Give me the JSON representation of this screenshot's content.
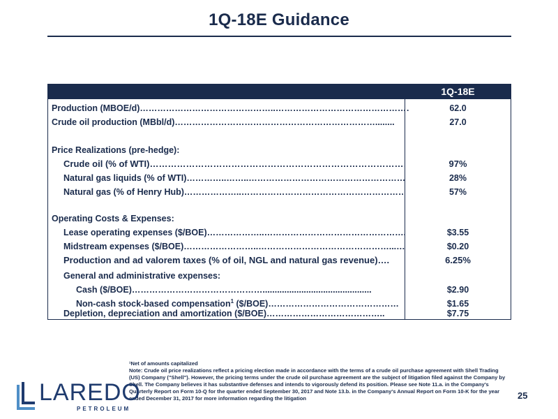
{
  "slide": {
    "title": "1Q-18E Guidance",
    "page_number": "25"
  },
  "table": {
    "column_header": "1Q-18E",
    "rows": {
      "production": {
        "label": "Production (MBOE/d)………………………………………..…………………………………………...",
        "value": "62.0"
      },
      "crude_production": {
        "label": "Crude oil production (MBbl/d)……………………………………………………………........",
        "value": "27.0"
      },
      "price_heading": {
        "label": "Price Realizations (pre-hedge):"
      },
      "crude_oil": {
        "label": "Crude oil (% of WTI)……………………………………………………………………………………",
        "value": "97%"
      },
      "ngl": {
        "label": "Natural gas liquids (% of WTI)…………..……..………………………………………………..",
        "value": "28%"
      },
      "natural_gas": {
        "label": "Natural gas (% of Henry Hub)………………..……………………………………………………",
        "value": "57%"
      },
      "costs_heading": {
        "label": "Operating Costs & Expenses:"
      },
      "loe": {
        "label": "Lease operating expenses ($/BOE)………………..…………………………………………..",
        "value": "$3.55"
      },
      "midstream": {
        "label": "Midstream expenses ($/BOE)……………………..………………………………………...……..",
        "value": "$0.20"
      },
      "production_taxes": {
        "label": "Production and ad valorem taxes (% of oil, NGL and natural gas revenue)….",
        "value": "6.25%"
      },
      "ga_heading": {
        "label": "General and administrative expenses:"
      },
      "cash": {
        "label": "Cash ($/BOE)……………………………………….............................................",
        "value": "$2.90"
      },
      "non_cash_prefix": {
        "label": "Non-cash stock-based compensation",
        "superscript": "1",
        "suffix": " ($/BOE)………………………………………",
        "value": "$1.65"
      },
      "dda": {
        "label": "Depletion, depreciation and amortization ($/BOE)…………………………………..",
        "value": "$7.75"
      }
    }
  },
  "footnotes": {
    "superscript_note": "¹Net of amounts capitalized",
    "note": "Note: Crude oil price realizations reflect a pricing election made in accordance with the terms of a crude oil purchase agreement with Shell Trading (US) Company (\"Shell\"). However, the pricing terms under the crude oil purchase agreement are the subject of litigation filed against the Company by Shell. The Company believes it has substantive defenses and intends to vigorously defend its position. Please see Note 11.a. in the Company's Quarterly Report on Form 10-Q for the quarter ended September 30, 2017 and Note 13.b. in the Company's Annual Report on Form 10-K for the year ended December 31, 2017 for more information regarding the litigation"
  },
  "logo": {
    "name": "LAREDO",
    "sub": "PETROLEUM"
  },
  "colors": {
    "navy": "#1a2b4c",
    "logo_blue": "#1f3b6e",
    "logo_light": "#4f8fc7"
  }
}
